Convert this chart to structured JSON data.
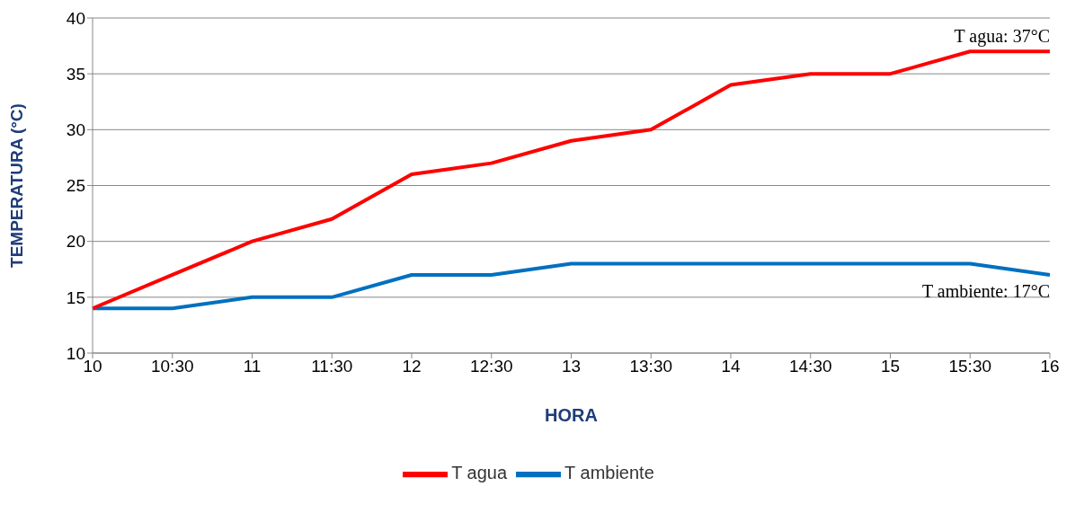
{
  "chart_data": {
    "type": "line",
    "xlabel": "HORA",
    "ylabel": "TEMPERATURA (°C)",
    "categories": [
      "10",
      "10:30",
      "11",
      "11:30",
      "12",
      "12:30",
      "13",
      "13:30",
      "14",
      "14:30",
      "15",
      "15:30",
      "16"
    ],
    "series": [
      {
        "name": "T ambiente",
        "color": "#0070c0",
        "values": [
          14,
          14,
          15,
          15,
          17,
          17,
          18,
          18,
          18,
          18,
          18,
          18,
          17
        ]
      },
      {
        "name": "T agua",
        "color": "#ff0000",
        "values": [
          14,
          17,
          20,
          22,
          26,
          27,
          29,
          30,
          34,
          35,
          35,
          37,
          37
        ]
      }
    ],
    "ylim": [
      10,
      40
    ],
    "yticks": [
      10,
      15,
      20,
      25,
      30,
      35,
      40
    ],
    "grid": "y",
    "legend": "bottom",
    "marker": "none",
    "line_style": "solid",
    "annotations": [
      {
        "text": "T agua: 37°C",
        "x": "16",
        "y": 37
      },
      {
        "text": "T ambiente: 17°C",
        "x": "16",
        "y": 17
      }
    ]
  }
}
